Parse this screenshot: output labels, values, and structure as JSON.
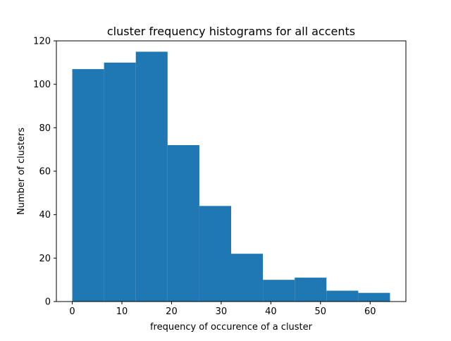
{
  "chart_data": {
    "type": "bar",
    "title": "cluster frequency histograms for all accents",
    "xlabel": "frequency of occurence of a cluster",
    "ylabel": "Number of clusters",
    "bin_edges": [
      0,
      6.4,
      12.8,
      19.2,
      25.6,
      32.0,
      38.4,
      44.8,
      51.2,
      57.6,
      64.0
    ],
    "values": [
      107,
      110,
      115,
      72,
      44,
      22,
      10,
      11,
      5,
      4
    ],
    "xlim": [
      -3.2,
      67.2
    ],
    "ylim": [
      0,
      120
    ],
    "xticks": [
      0,
      10,
      20,
      30,
      40,
      50,
      60
    ],
    "yticks": [
      0,
      20,
      40,
      60,
      80,
      100,
      120
    ],
    "bar_color": "#1f77b4",
    "grid": false
  }
}
